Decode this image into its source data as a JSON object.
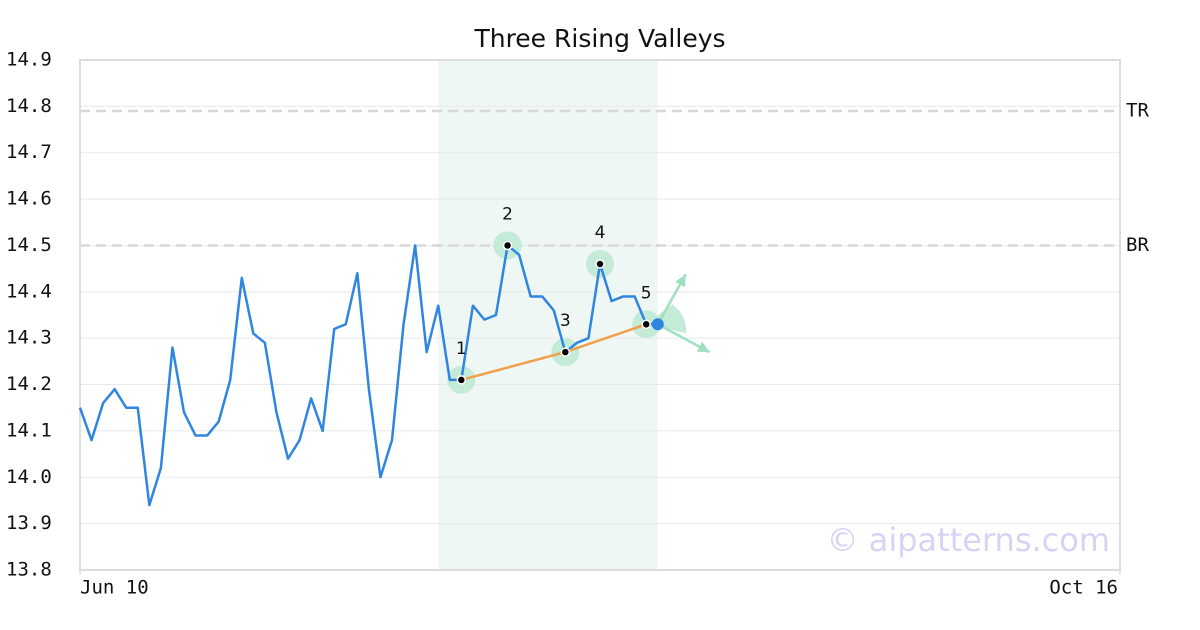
{
  "chart_data": {
    "type": "line",
    "title": "Three Rising Valleys",
    "watermark": "© aipatterns.com",
    "series": [
      {
        "color": "#2f86e0",
        "x": [
          0,
          1,
          2,
          3,
          4,
          5,
          6,
          7,
          8,
          9,
          10,
          11,
          12,
          13,
          14,
          15,
          16,
          17,
          18,
          19,
          20,
          21,
          22,
          23,
          24,
          25,
          26,
          27,
          28,
          29,
          30,
          31,
          32,
          33,
          34,
          35,
          36,
          37,
          38,
          39,
          40,
          41,
          42,
          43,
          44,
          45,
          46,
          47,
          48,
          49,
          50
        ],
        "values": [
          14.15,
          14.08,
          14.16,
          14.19,
          14.15,
          14.15,
          13.94,
          14.02,
          14.28,
          14.14,
          14.09,
          14.09,
          14.12,
          14.21,
          14.43,
          14.31,
          14.29,
          14.14,
          14.04,
          14.08,
          14.17,
          14.1,
          14.32,
          14.33,
          14.44,
          14.19,
          14.0,
          14.08,
          14.33,
          14.5,
          14.27,
          14.37,
          14.21,
          14.21,
          14.37,
          14.34,
          14.35,
          14.5,
          14.48,
          14.39,
          14.39,
          14.36,
          14.27,
          14.29,
          14.3,
          14.46,
          14.38,
          14.39,
          14.39,
          14.33,
          14.33
        ]
      }
    ],
    "xlim": [
      0,
      90
    ],
    "xticks": [
      {
        "value": 0,
        "label": "Jun 10"
      },
      {
        "value": 90,
        "label": "Oct 16"
      }
    ],
    "ylim": [
      13.8,
      14.9
    ],
    "yticks": [
      13.8,
      13.9,
      {
        "value": 14,
        "label": "14.0"
      },
      14.1,
      14.2,
      14.3,
      14.4,
      14.5,
      14.6,
      14.7,
      14.8,
      14.9
    ],
    "grid": true,
    "highlight": [
      31,
      50
    ],
    "reference_lines": [
      {
        "label": "TR",
        "value": 14.79
      },
      {
        "label": "BR",
        "value": 14.5
      }
    ],
    "pattern_points": [
      {
        "label": "1",
        "x": 33,
        "y": 14.21
      },
      {
        "label": "2",
        "x": 37,
        "y": 14.5
      },
      {
        "label": "3",
        "x": 42,
        "y": 14.27
      },
      {
        "label": "4",
        "x": 45,
        "y": 14.46
      },
      {
        "label": "5",
        "x": 49,
        "y": 14.33
      }
    ]
  }
}
